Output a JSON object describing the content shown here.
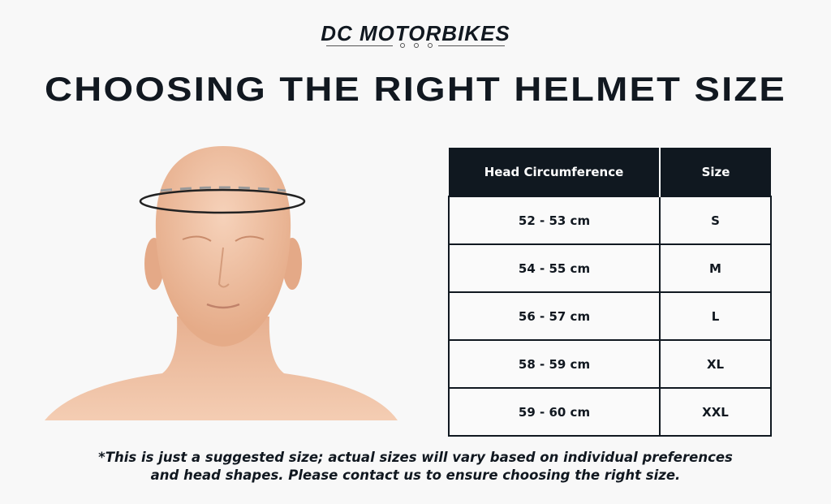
{
  "logo": {
    "text": "DC MOTORBIKES"
  },
  "title": "CHOOSING THE RIGHT HELMET SIZE",
  "table": {
    "headers": [
      "Head Circumference",
      "Size"
    ],
    "rows": [
      [
        "52 - 53 cm",
        "S"
      ],
      [
        "54 - 55 cm",
        "M"
      ],
      [
        "56 - 57 cm",
        "L"
      ],
      [
        "58 - 59 cm",
        "XL"
      ],
      [
        "59 - 60 cm",
        "XXL"
      ]
    ]
  },
  "note": {
    "line1": "*This is just a suggested size; actual sizes will vary based on individual preferences",
    "line2": "and head shapes. Please contact us to ensure choosing the right size."
  },
  "colors": {
    "dark": "#101820",
    "skin": "#f0c3a5",
    "background": "#f8f8f8"
  }
}
